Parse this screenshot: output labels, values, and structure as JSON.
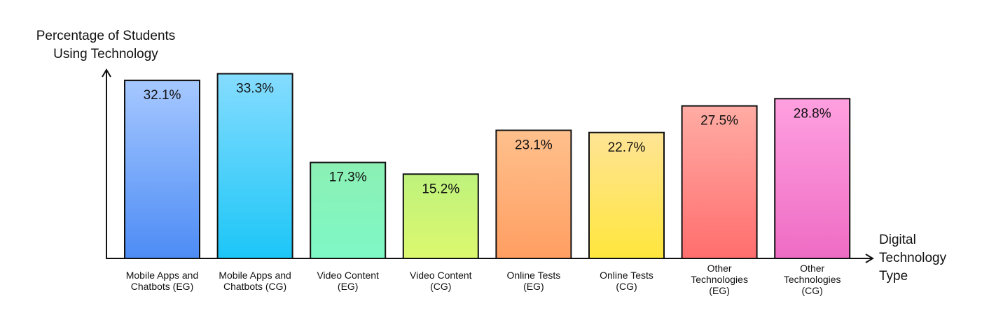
{
  "chart_data": {
    "type": "bar",
    "y_label": "Percentage of Students\nUsing Technology",
    "x_label": "Digital\nTechnology\nType",
    "categories": [
      "Mobile Apps and\nChatbots (EG)",
      "Mobile Apps and\nChatbots (CG)",
      "Video Content\n(EG)",
      "Video Content\n(CG)",
      "Online Tests\n(EG)",
      "Online Tests\n(CG)",
      "Other\nTechnologies\n(EG)",
      "Other\nTechnologies\n(CG)"
    ],
    "values": [
      32.1,
      33.3,
      17.3,
      15.2,
      23.1,
      22.7,
      27.5,
      28.8
    ],
    "value_labels": [
      "32.1%",
      "33.3%",
      "17.3%",
      "15.2%",
      "23.1%",
      "22.7%",
      "27.5%",
      "28.8%"
    ],
    "colors": [
      [
        "#a6c8ff",
        "#4d8cf5"
      ],
      [
        "#85dcff",
        "#1cc6f7"
      ],
      [
        "#8cf0b4",
        "#7ef8c6"
      ],
      [
        "#bef27c",
        "#dcf86e"
      ],
      [
        "#ffc08c",
        "#ff9e62"
      ],
      [
        "#ffe496",
        "#ffe63c"
      ],
      [
        "#ffaca4",
        "#ff6e6e"
      ],
      [
        "#ffa0e0",
        "#ee6cc4"
      ]
    ],
    "ylim": [
      0,
      34
    ]
  }
}
